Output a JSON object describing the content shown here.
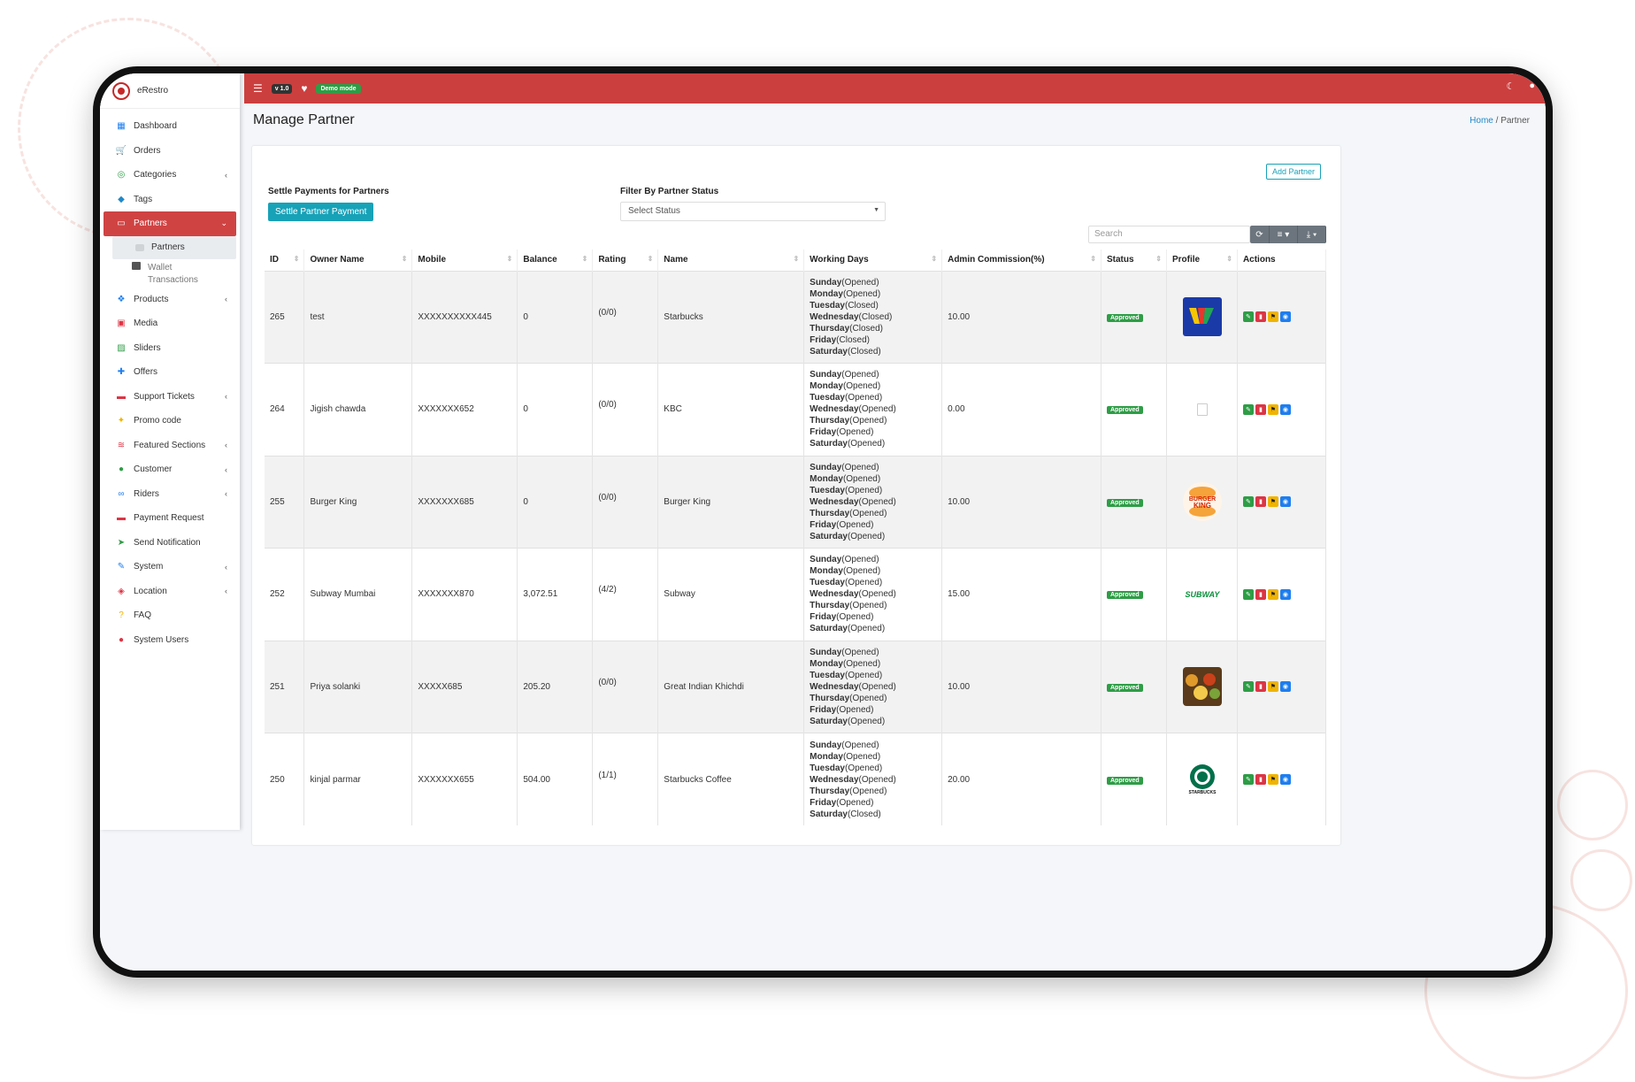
{
  "app": {
    "name": "eRestro",
    "version": "v 1.0",
    "mode_badge": "Demo mode"
  },
  "sidebar": {
    "items": [
      {
        "label": "Dashboard",
        "icon": "dashboard-icon",
        "chevron": false
      },
      {
        "label": "Orders",
        "icon": "cart-icon",
        "chevron": false
      },
      {
        "label": "Categories",
        "icon": "circle-target-icon",
        "chevron": true
      },
      {
        "label": "Tags",
        "icon": "tag-icon",
        "chevron": false
      },
      {
        "label": "Partners",
        "icon": "store-icon",
        "chevron": true,
        "active": true
      },
      {
        "label": "Partners",
        "sub": true
      },
      {
        "label": "Wallet Transactions",
        "sub2": true
      },
      {
        "label": "Products",
        "icon": "cubes-icon",
        "chevron": true
      },
      {
        "label": "Media",
        "icon": "media-icon",
        "chevron": false
      },
      {
        "label": "Sliders",
        "icon": "image-icon",
        "chevron": false
      },
      {
        "label": "Offers",
        "icon": "gift-icon",
        "chevron": false
      },
      {
        "label": "Support Tickets",
        "icon": "ticket-icon",
        "chevron": true
      },
      {
        "label": "Promo code",
        "icon": "puzzle-icon",
        "chevron": false
      },
      {
        "label": "Featured Sections",
        "icon": "layers-icon",
        "chevron": true
      },
      {
        "label": "Customer",
        "icon": "user-icon",
        "chevron": true
      },
      {
        "label": "Riders",
        "icon": "motorcycle-icon",
        "chevron": true
      },
      {
        "label": "Payment Request",
        "icon": "money-icon",
        "chevron": false
      },
      {
        "label": "Send Notification",
        "icon": "paper-plane-icon",
        "chevron": false
      },
      {
        "label": "System",
        "icon": "wrench-icon",
        "chevron": true
      },
      {
        "label": "Location",
        "icon": "map-icon",
        "chevron": true
      },
      {
        "label": "FAQ",
        "icon": "question-icon",
        "chevron": false
      },
      {
        "label": "System Users",
        "icon": "user-lock-icon",
        "chevron": false
      }
    ]
  },
  "page": {
    "title": "Manage Partner",
    "breadcrumb": {
      "home": "Home",
      "sep": "/",
      "current": "Partner"
    }
  },
  "controls": {
    "add_partner": "Add Partner",
    "settle_label": "Settle Payments for Partners",
    "settle_button": "Settle Partner Payment",
    "filter_label": "Filter By Partner Status",
    "filter_value": "Select Status",
    "search_placeholder": "Search"
  },
  "table": {
    "headers": [
      "ID",
      "Owner Name",
      "Mobile",
      "Balance",
      "Rating",
      "Name",
      "Working Days",
      "Admin Commission(%)",
      "Status",
      "Profile",
      "Actions"
    ],
    "rows": [
      {
        "id": "265",
        "owner": "test",
        "mobile": "XXXXXXXXXX445",
        "balance": "0",
        "rating": "(0/0)",
        "name": "Starbucks",
        "commission": "10.00",
        "status": "Approved",
        "logo": "wv",
        "days": [
          [
            "Sunday",
            "(Opened)"
          ],
          [
            "Monday",
            "(Opened)"
          ],
          [
            "Tuesday",
            "(Closed)"
          ],
          [
            "Wednesday",
            "(Closed)"
          ],
          [
            "Thursday",
            "(Closed)"
          ],
          [
            "Friday",
            "(Closed)"
          ],
          [
            "Saturday",
            "(Closed)"
          ]
        ]
      },
      {
        "id": "264",
        "owner": "Jigish chawda",
        "mobile": "XXXXXXX652",
        "balance": "0",
        "rating": "(0/0)",
        "name": "KBC",
        "commission": "0.00",
        "status": "Approved",
        "logo": "placeholder",
        "days": [
          [
            "Sunday",
            "(Opened)"
          ],
          [
            "Monday",
            "(Opened)"
          ],
          [
            "Tuesday",
            "(Opened)"
          ],
          [
            "Wednesday",
            "(Opened)"
          ],
          [
            "Thursday",
            "(Opened)"
          ],
          [
            "Friday",
            "(Opened)"
          ],
          [
            "Saturday",
            "(Opened)"
          ]
        ]
      },
      {
        "id": "255",
        "owner": "Burger King",
        "mobile": "XXXXXXX685",
        "balance": "0",
        "rating": "(0/0)",
        "name": "Burger King",
        "commission": "10.00",
        "status": "Approved",
        "logo": "bk",
        "days": [
          [
            "Sunday",
            "(Opened)"
          ],
          [
            "Monday",
            "(Opened)"
          ],
          [
            "Tuesday",
            "(Opened)"
          ],
          [
            "Wednesday",
            "(Opened)"
          ],
          [
            "Thursday",
            "(Opened)"
          ],
          [
            "Friday",
            "(Opened)"
          ],
          [
            "Saturday",
            "(Opened)"
          ]
        ]
      },
      {
        "id": "252",
        "owner": "Subway Mumbai",
        "mobile": "XXXXXXX870",
        "balance": "3,072.51",
        "rating": "(4/2)",
        "name": "Subway",
        "commission": "15.00",
        "status": "Approved",
        "logo": "subway",
        "days": [
          [
            "Sunday",
            "(Opened)"
          ],
          [
            "Monday",
            "(Opened)"
          ],
          [
            "Tuesday",
            "(Opened)"
          ],
          [
            "Wednesday",
            "(Opened)"
          ],
          [
            "Thursday",
            "(Opened)"
          ],
          [
            "Friday",
            "(Opened)"
          ],
          [
            "Saturday",
            "(Opened)"
          ]
        ]
      },
      {
        "id": "251",
        "owner": "Priya solanki",
        "mobile": "XXXXX685",
        "balance": "205.20",
        "rating": "(0/0)",
        "name": "Great Indian Khichdi",
        "commission": "10.00",
        "status": "Approved",
        "logo": "food",
        "days": [
          [
            "Sunday",
            "(Opened)"
          ],
          [
            "Monday",
            "(Opened)"
          ],
          [
            "Tuesday",
            "(Opened)"
          ],
          [
            "Wednesday",
            "(Opened)"
          ],
          [
            "Thursday",
            "(Opened)"
          ],
          [
            "Friday",
            "(Opened)"
          ],
          [
            "Saturday",
            "(Opened)"
          ]
        ]
      },
      {
        "id": "250",
        "owner": "kinjal parmar",
        "mobile": "XXXXXXX655",
        "balance": "504.00",
        "rating": "(1/1)",
        "name": "Starbucks Coffee",
        "commission": "20.00",
        "status": "Approved",
        "logo": "starbucks",
        "days": [
          [
            "Sunday",
            "(Opened)"
          ],
          [
            "Monday",
            "(Opened)"
          ],
          [
            "Tuesday",
            "(Opened)"
          ],
          [
            "Wednesday",
            "(Opened)"
          ],
          [
            "Thursday",
            "(Opened)"
          ],
          [
            "Friday",
            "(Opened)"
          ],
          [
            "Saturday",
            "(Closed)"
          ]
        ]
      }
    ]
  },
  "logo_text": {
    "bk_line1": "BURGER",
    "bk_line2": "KING",
    "subway": "SUBWAY",
    "starbucks": "STARBUCKS"
  },
  "colors": {
    "brand_red": "#cc3f3f",
    "teal": "#17a2b8",
    "approved_green": "#2e9d46"
  }
}
